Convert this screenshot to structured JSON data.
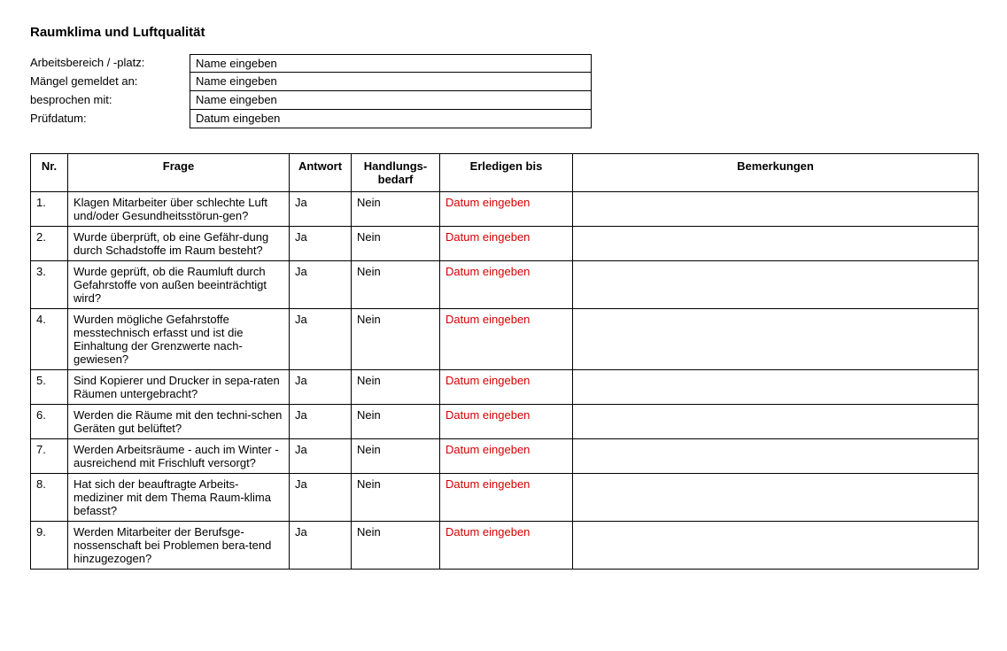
{
  "title": "Raumklima und Luftqualität",
  "meta": {
    "rows": [
      {
        "label": "Arbeitsbereich / -platz:",
        "value": "Name eingeben"
      },
      {
        "label": "Mängel gemeldet an:",
        "value": "Name eingeben"
      },
      {
        "label": "besprochen mit:",
        "value": "Name eingeben"
      },
      {
        "label": "Prüfdatum:",
        "value": "Datum eingeben"
      }
    ]
  },
  "table": {
    "headers": {
      "nr": "Nr.",
      "frage": "Frage",
      "antwort": "Antwort",
      "handlung": "Handlungs-\nbedarf",
      "erledigen": "Erledigen bis",
      "bemerkungen": "Bemerkungen"
    },
    "rows": [
      {
        "nr": "1.",
        "frage": "Klagen Mitarbeiter über schlechte Luft und/oder Gesundheitsstörun-gen?",
        "antwort": "Ja",
        "handlung": "Nein",
        "erledigen": "Datum eingeben",
        "bemerkungen": ""
      },
      {
        "nr": "2.",
        "frage": "Wurde überprüft, ob eine Gefähr-dung durch Schadstoffe im Raum besteht?",
        "antwort": "Ja",
        "handlung": "Nein",
        "erledigen": "Datum eingeben",
        "bemerkungen": ""
      },
      {
        "nr": "3.",
        "frage": "Wurde geprüft, ob die Raumluft durch Gefahrstoffe von außen beeinträchtigt wird?",
        "antwort": "Ja",
        "handlung": "Nein",
        "erledigen": "Datum eingeben",
        "bemerkungen": ""
      },
      {
        "nr": "4.",
        "frage": "Wurden mögliche Gefahrstoffe messtechnisch erfasst und ist die Einhaltung der Grenzwerte nach-gewiesen?",
        "antwort": "Ja",
        "handlung": "Nein",
        "erledigen": "Datum eingeben",
        "bemerkungen": ""
      },
      {
        "nr": "5.",
        "frage": "Sind Kopierer und Drucker in sepa-raten Räumen untergebracht?",
        "antwort": "Ja",
        "handlung": "Nein",
        "erledigen": "Datum eingeben",
        "bemerkungen": ""
      },
      {
        "nr": "6.",
        "frage": "Werden die Räume mit den techni-schen Geräten gut belüftet?",
        "antwort": "Ja",
        "handlung": "Nein",
        "erledigen": "Datum eingeben",
        "bemerkungen": ""
      },
      {
        "nr": "7.",
        "frage": "Werden Arbeitsräume - auch im Winter - ausreichend mit Frischluft versorgt?",
        "antwort": "Ja",
        "handlung": "Nein",
        "erledigen": "Datum eingeben",
        "bemerkungen": ""
      },
      {
        "nr": "8.",
        "frage": "Hat sich der beauftragte Arbeits-mediziner mit dem Thema Raum-klima befasst?",
        "antwort": "Ja",
        "handlung": "Nein",
        "erledigen": "Datum eingeben",
        "bemerkungen": ""
      },
      {
        "nr": "9.",
        "frage": "Werden Mitarbeiter der Berufsge-nossenschaft bei Problemen bera-tend hinzugezogen?",
        "antwort": "Ja",
        "handlung": "Nein",
        "erledigen": "Datum eingeben",
        "bemerkungen": ""
      }
    ]
  },
  "colors": {
    "date_placeholder": "#d40000",
    "border": "#000000",
    "text": "#000000",
    "background": "#ffffff"
  }
}
